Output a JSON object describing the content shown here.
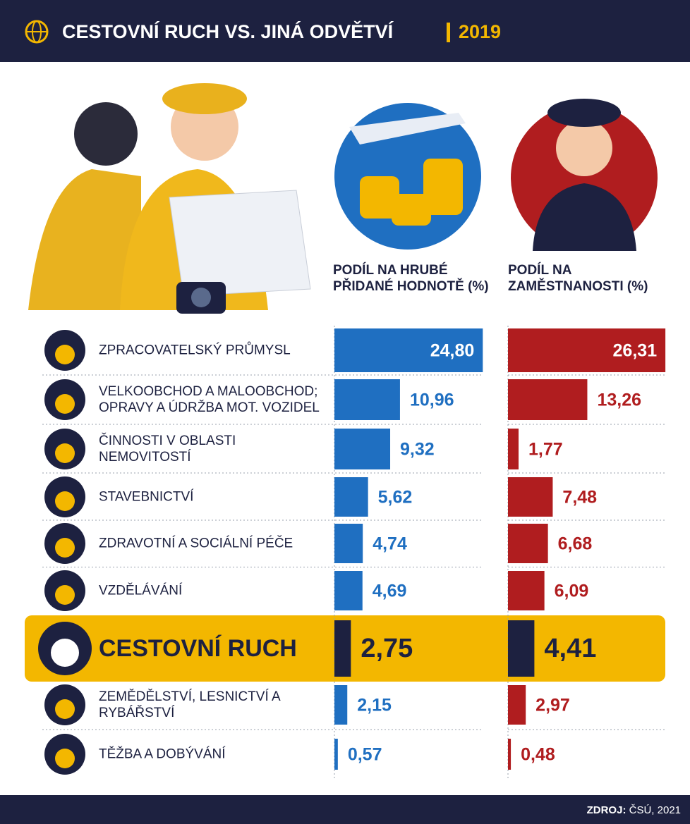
{
  "chart_data": {
    "type": "bar",
    "title": "CESTOVNÍ RUCH VS. JINÁ ODVĚTVÍ",
    "subtitle": "2019",
    "categories": [
      "ZPRACOVATELSKÝ PRŮMYSL",
      "VELKOOBCHOD A MALOOBCHOD; OPRAVY A ÚDRŽBA MOT. VOZIDEL",
      "ČINNOSTI V OBLASTI NEMOVITOSTÍ",
      "STAVEBNICTVÍ",
      "ZDRAVOTNÍ A SOCIÁLNÍ PÉČE",
      "VZDĚLÁVÁNÍ",
      "CESTOVNÍ RUCH",
      "ZEMĚDĚLSTVÍ, LESNICTVÍ A RYBÁŘSTVÍ",
      "TĚŽBA A DOBÝVÁNÍ"
    ],
    "series": [
      {
        "name": "PODÍL NA HRUBÉ PŘIDANÉ HODNOTĚ (%)",
        "color": "#1f6fc1",
        "values": [
          24.8,
          10.96,
          9.32,
          5.62,
          4.74,
          4.69,
          2.75,
          2.15,
          0.57
        ],
        "value_labels": [
          "24,80",
          "10,96",
          "9,32",
          "5,62",
          "4,74",
          "4,69",
          "2,75",
          "2,15",
          "0,57"
        ]
      },
      {
        "name": "PODÍL NA ZAMĚSTNANOSTI (%)",
        "color": "#b01d1f",
        "values": [
          26.31,
          13.26,
          1.77,
          7.48,
          6.68,
          6.09,
          4.41,
          2.97,
          0.48
        ],
        "value_labels": [
          "26,31",
          "13,26",
          "1,77",
          "7,48",
          "6,68",
          "6,09",
          "4,41",
          "2,97",
          "0,48"
        ]
      }
    ],
    "xlim": [
      0,
      25
    ],
    "highlight_index": 6,
    "highlight_color": "#f3b700",
    "highlight_bar_color": "#1d2140",
    "source_label": "ZDROJ:",
    "source": "ČSÚ, 2021"
  }
}
